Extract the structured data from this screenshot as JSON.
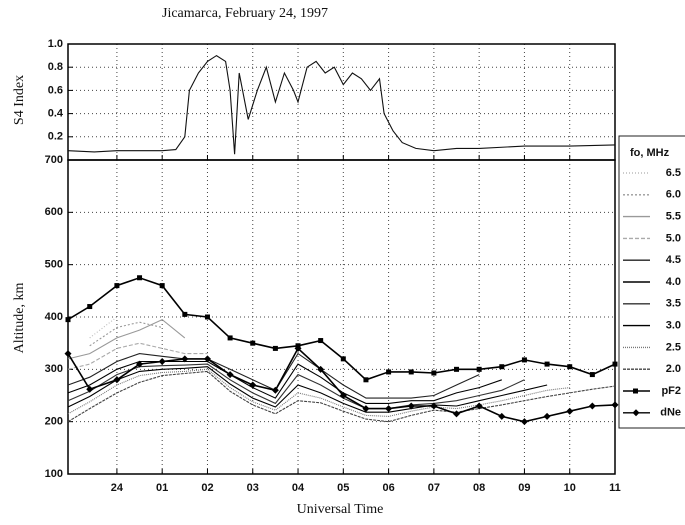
{
  "chart_data": [
    {
      "type": "line",
      "title": "Jicamarca, February 24, 1997",
      "ylabel": "S4 Index",
      "xlim": [
        22.92,
        35
      ],
      "ylim": [
        0,
        1
      ],
      "yticks": [
        0.2,
        0.4,
        0.6,
        0.8,
        {
          "value": 1,
          "label": "1.0"
        }
      ],
      "grid": true,
      "x": [
        22.92,
        23.5,
        24,
        24.5,
        25,
        25.3,
        25.5,
        25.6,
        25.8,
        26.0,
        26.2,
        26.4,
        26.5,
        26.6,
        26.7,
        26.9,
        27.1,
        27.3,
        27.5,
        27.7,
        27.9,
        28.0,
        28.2,
        28.4,
        28.6,
        28.8,
        29.0,
        29.2,
        29.4,
        29.6,
        29.8,
        29.9,
        30.1,
        30.3,
        30.6,
        31,
        31.5,
        32,
        33,
        34,
        35
      ],
      "series": [
        {
          "color": "#111111",
          "values": [
            0.08,
            0.07,
            0.08,
            0.08,
            0.08,
            0.09,
            0.2,
            0.6,
            0.75,
            0.85,
            0.9,
            0.85,
            0.6,
            0.05,
            0.75,
            0.35,
            0.6,
            0.8,
            0.5,
            0.75,
            0.6,
            0.5,
            0.8,
            0.85,
            0.75,
            0.8,
            0.65,
            0.75,
            0.7,
            0.6,
            0.7,
            0.4,
            0.25,
            0.15,
            0.1,
            0.08,
            0.1,
            0.1,
            0.12,
            0.12,
            0.13
          ]
        }
      ]
    },
    {
      "type": "line",
      "xlabel": "Universal Time",
      "ylabel": "Altitude, km",
      "legend_title": "fo, MHz",
      "xlim": [
        22.92,
        35
      ],
      "ylim": [
        100,
        700
      ],
      "yticks": [
        100,
        200,
        300,
        400,
        500,
        600,
        700
      ],
      "grid": true,
      "xticks": [
        24,
        {
          "value": 25,
          "label": "01"
        },
        {
          "value": 26,
          "label": "02"
        },
        {
          "value": 27,
          "label": "03"
        },
        {
          "value": 28,
          "label": "04"
        },
        {
          "value": 29,
          "label": "05"
        },
        {
          "value": 30,
          "label": "06"
        },
        {
          "value": 31,
          "label": "07"
        },
        {
          "value": 32,
          "label": "08"
        },
        {
          "value": 33,
          "label": "09"
        },
        {
          "value": 34,
          "label": "10"
        },
        {
          "value": 35,
          "label": "11"
        }
      ],
      "x": [
        22.92,
        23.4,
        24,
        24.5,
        25,
        25.5,
        26,
        26.5,
        27,
        27.5,
        28,
        28.5,
        29,
        29.5,
        30,
        30.5,
        31,
        31.5,
        32,
        32.5,
        33,
        33.5,
        34,
        34.5,
        35
      ],
      "series": [
        {
          "name": "6.5",
          "color": "#bbbbbb",
          "dash": "1 2",
          "values": [
            null,
            360,
            400,
            null,
            null,
            null,
            null,
            null,
            null,
            null,
            null,
            null,
            null,
            null,
            null,
            null,
            null,
            null,
            null,
            null,
            null,
            null,
            null,
            null,
            null
          ]
        },
        {
          "name": "6.0",
          "color": "#999999",
          "dash": "2 2",
          "values": [
            null,
            345,
            380,
            390,
            380,
            null,
            null,
            null,
            null,
            null,
            null,
            null,
            null,
            null,
            null,
            null,
            null,
            null,
            null,
            null,
            null,
            null,
            null,
            null,
            null
          ]
        },
        {
          "name": "5.5",
          "color": "#999999",
          "dash": "",
          "values": [
            320,
            330,
            360,
            375,
            395,
            360,
            null,
            null,
            null,
            null,
            null,
            null,
            null,
            null,
            null,
            null,
            null,
            null,
            null,
            null,
            null,
            null,
            null,
            null,
            null
          ]
        },
        {
          "name": "5.0",
          "color": "#aaaaaa",
          "dash": "4 2",
          "values": [
            300,
            310,
            340,
            350,
            340,
            330,
            330,
            null,
            null,
            null,
            null,
            null,
            null,
            null,
            null,
            null,
            null,
            null,
            null,
            null,
            null,
            null,
            null,
            null,
            null
          ]
        },
        {
          "name": "4.5",
          "color": "#222222",
          "dash": "",
          "values": [
            270,
            285,
            315,
            330,
            325,
            320,
            320,
            300,
            280,
            260,
            330,
            300,
            270,
            245,
            245,
            245,
            250,
            270,
            290,
            null,
            null,
            null,
            null,
            null,
            null
          ]
        },
        {
          "name": "4.0",
          "color": "#000000",
          "dash": "",
          "values": [
            255,
            270,
            300,
            315,
            315,
            315,
            315,
            290,
            265,
            245,
            310,
            285,
            255,
            235,
            235,
            240,
            240,
            255,
            265,
            280,
            null,
            null,
            null,
            null,
            null
          ]
        },
        {
          "name": "3.5",
          "color": "#333333",
          "dash": "",
          "values": [
            240,
            258,
            290,
            305,
            307,
            308,
            310,
            280,
            255,
            235,
            290,
            270,
            245,
            225,
            225,
            232,
            235,
            240,
            250,
            260,
            280,
            null,
            null,
            null,
            null
          ]
        },
        {
          "name": "3.0",
          "color": "#000000",
          "dash": "",
          "values": [
            228,
            248,
            280,
            296,
            300,
            302,
            305,
            272,
            245,
            228,
            270,
            255,
            235,
            218,
            218,
            225,
            232,
            230,
            240,
            250,
            260,
            270,
            null,
            null,
            null
          ]
        },
        {
          "name": "2.5",
          "color": "#777777",
          "dash": "1 1",
          "values": [
            215,
            238,
            270,
            288,
            294,
            296,
            300,
            265,
            238,
            222,
            255,
            245,
            228,
            212,
            210,
            220,
            228,
            225,
            232,
            240,
            250,
            260,
            265,
            null,
            null
          ]
        },
        {
          "name": "2.0",
          "color": "#444444",
          "dash": "3 1",
          "values": [
            200,
            225,
            255,
            275,
            288,
            292,
            296,
            258,
            232,
            215,
            240,
            236,
            220,
            205,
            200,
            212,
            222,
            218,
            225,
            232,
            240,
            248,
            255,
            262,
            268
          ]
        },
        {
          "name": "pF2",
          "color": "#000000",
          "dash": "",
          "marker": "square",
          "values": [
            395,
            420,
            460,
            475,
            460,
            405,
            400,
            360,
            350,
            340,
            345,
            355,
            320,
            280,
            295,
            295,
            293,
            300,
            300,
            305,
            318,
            310,
            305,
            290,
            310
          ]
        },
        {
          "name": "dNe",
          "color": "#000000",
          "dash": "",
          "marker": "diamond",
          "values": [
            330,
            262,
            280,
            310,
            315,
            320,
            320,
            290,
            270,
            260,
            340,
            300,
            250,
            225,
            225,
            230,
            230,
            215,
            230,
            210,
            200,
            210,
            220,
            230,
            232
          ]
        }
      ]
    }
  ]
}
